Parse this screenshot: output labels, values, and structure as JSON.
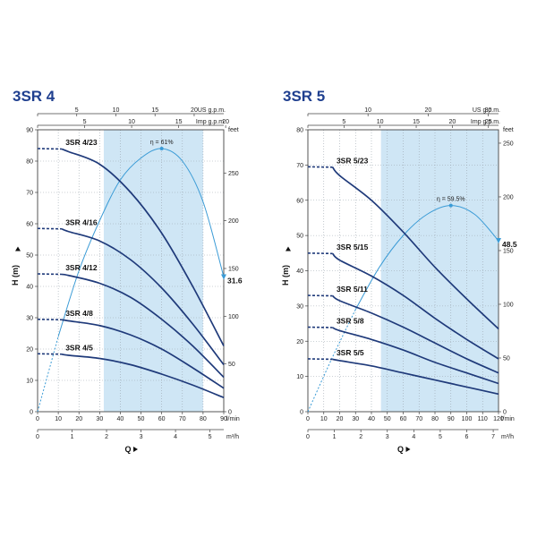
{
  "colors": {
    "curve": "#1f3a7a",
    "efficiency": "#3a9bd6",
    "band": "#cfe6f5",
    "grid": "#9aa4ad",
    "title": "#1f3f8f"
  },
  "chart_data": [
    {
      "type": "line",
      "title": "3SR 4",
      "xlabel": "Q",
      "ylabel": "H (m)",
      "x_unit": "l/min",
      "xlim": [
        0,
        90
      ],
      "ylim": [
        0,
        90
      ],
      "x_ticks": [
        0,
        10,
        20,
        30,
        40,
        50,
        60,
        70,
        80,
        90
      ],
      "y_ticks": [
        0,
        10,
        20,
        30,
        40,
        50,
        60,
        70,
        80,
        90
      ],
      "secondary_x_m3h": {
        "unit": "m³/h",
        "ticks": [
          "0",
          "1",
          "2",
          "3",
          "4",
          "5"
        ],
        "factor": 16.667
      },
      "secondary_x_usgpm": {
        "unit": "US g.p.m.",
        "ticks": [
          "0",
          "5",
          "10",
          "15",
          "20"
        ],
        "factor": 3.785
      },
      "secondary_x_impgpm": {
        "unit": "Imp g.p.m.",
        "ticks": [
          "0",
          "5",
          "10",
          "15",
          "20"
        ],
        "factor": 4.546
      },
      "secondary_y_feet": {
        "unit": "feet",
        "ticks": [
          "0",
          "50",
          "100",
          "150",
          "200",
          "250"
        ],
        "factor": 0.3048
      },
      "efficiency_band": [
        32,
        80
      ],
      "efficiency_peak_label": "η = 61%",
      "efficiency_end_label": "31.6",
      "efficiency_curve": {
        "x": [
          0,
          10,
          20,
          30,
          40,
          50,
          60,
          70,
          80,
          90
        ],
        "y": [
          0,
          24,
          45,
          61,
          74,
          81,
          84,
          80,
          67,
          43
        ]
      },
      "series": [
        {
          "name": "3SR 4/23",
          "x": [
            0,
            15,
            30,
            45,
            60,
            75,
            90
          ],
          "y": [
            84,
            83,
            79,
            70,
            57,
            40,
            21
          ]
        },
        {
          "name": "3SR 4/16",
          "x": [
            0,
            15,
            30,
            45,
            60,
            75,
            90
          ],
          "y": [
            58.5,
            57.5,
            54.5,
            48.5,
            39.5,
            28,
            15
          ]
        },
        {
          "name": "3SR 4/12",
          "x": [
            0,
            15,
            30,
            45,
            60,
            75,
            90
          ],
          "y": [
            44,
            43.5,
            41,
            36.5,
            29.5,
            21,
            11
          ]
        },
        {
          "name": "3SR 4/8",
          "x": [
            0,
            15,
            30,
            45,
            60,
            75,
            90
          ],
          "y": [
            29.5,
            29,
            27.5,
            24.5,
            20,
            14,
            7.5
          ]
        },
        {
          "name": "3SR 4/5",
          "x": [
            0,
            15,
            30,
            45,
            60,
            75,
            90
          ],
          "y": [
            18.5,
            18,
            17,
            15,
            12,
            8.5,
            4.5
          ]
        }
      ]
    },
    {
      "type": "line",
      "title": "3SR 5",
      "xlabel": "Q",
      "ylabel": "H (m)",
      "x_unit": "l/min",
      "xlim": [
        0,
        120
      ],
      "ylim": [
        0,
        80
      ],
      "x_ticks": [
        0,
        10,
        20,
        30,
        40,
        50,
        60,
        70,
        80,
        90,
        100,
        110,
        120
      ],
      "y_ticks": [
        0,
        10,
        20,
        30,
        40,
        50,
        60,
        70,
        80
      ],
      "secondary_x_m3h": {
        "unit": "m³/h",
        "ticks": [
          "0",
          "1",
          "2",
          "3",
          "4",
          "5",
          "6",
          "7"
        ],
        "factor": 16.667
      },
      "secondary_x_usgpm": {
        "unit": "US g.p.m.",
        "ticks": [
          "0",
          "10",
          "20",
          "30"
        ],
        "factor": 3.785
      },
      "secondary_x_impgpm": {
        "unit": "Imp g.p.m.",
        "ticks": [
          "0",
          "5",
          "10",
          "15",
          "20",
          "25"
        ],
        "factor": 4.546
      },
      "secondary_y_feet": {
        "unit": "feet",
        "ticks": [
          "0",
          "50",
          "100",
          "150",
          "200",
          "250"
        ],
        "factor": 0.3048
      },
      "efficiency_band": [
        46,
        120
      ],
      "efficiency_peak_label": "η = 59.5%",
      "efficiency_end_label": "48.5",
      "efficiency_curve": {
        "x": [
          0,
          15,
          30,
          45,
          60,
          75,
          90,
          105,
          120
        ],
        "y": [
          0,
          15,
          29,
          41,
          50,
          56,
          58.5,
          56,
          48.5
        ]
      },
      "series": [
        {
          "name": "3SR 5/23",
          "x": [
            0,
            20,
            40,
            60,
            80,
            100,
            120
          ],
          "y": [
            69.5,
            67,
            60,
            51,
            41,
            32,
            23.5
          ]
        },
        {
          "name": "3SR 5/15",
          "x": [
            0,
            20,
            40,
            60,
            80,
            100,
            120
          ],
          "y": [
            45,
            43,
            38.5,
            33,
            26.5,
            20.5,
            15
          ]
        },
        {
          "name": "3SR 5/11",
          "x": [
            0,
            20,
            40,
            60,
            80,
            100,
            120
          ],
          "y": [
            33,
            31.5,
            28,
            24,
            19.5,
            15,
            11
          ]
        },
        {
          "name": "3SR 5/8",
          "x": [
            0,
            20,
            40,
            60,
            80,
            100,
            120
          ],
          "y": [
            24,
            23,
            20.5,
            17.5,
            14,
            11,
            8
          ]
        },
        {
          "name": "3SR 5/5",
          "x": [
            0,
            20,
            40,
            60,
            80,
            100,
            120
          ],
          "y": [
            15,
            14.5,
            13,
            11,
            9,
            7,
            5
          ]
        }
      ]
    }
  ]
}
